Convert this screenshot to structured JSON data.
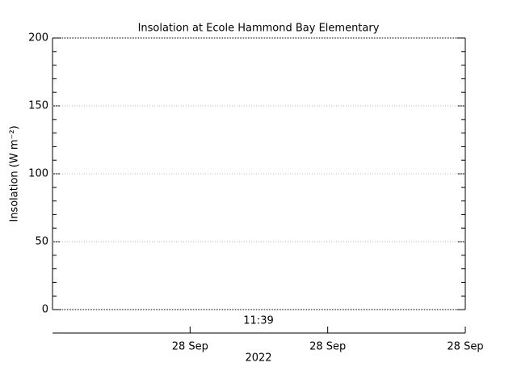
{
  "chart_data": {
    "type": "line",
    "title": "Insolation at Ecole Hammond Bay Elementary",
    "y_label": "Insolation (W m⁻²)",
    "ylim": [
      0,
      200
    ],
    "yticks": [
      0,
      50,
      100,
      150,
      200
    ],
    "y_minor_step": 10,
    "grid": true,
    "x_annotation": "11:39",
    "x_tick_labels": [
      "28 Sep",
      "28 Sep",
      "28 Sep"
    ],
    "x_label": "2022"
  }
}
